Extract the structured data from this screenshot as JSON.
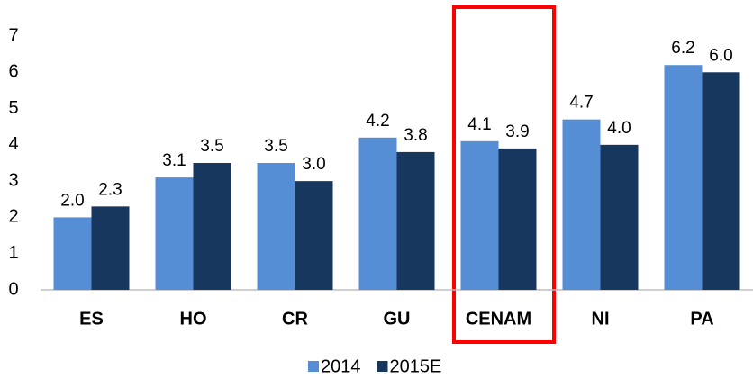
{
  "chart_data": {
    "type": "bar",
    "categories": [
      "ES",
      "HO",
      "CR",
      "GU",
      "CENAM",
      "NI",
      "PA"
    ],
    "series": [
      {
        "name": "2014",
        "color": "#558ed5",
        "values": [
          2.0,
          3.1,
          3.5,
          4.2,
          4.1,
          4.7,
          6.2
        ],
        "value_labels": [
          "2.0",
          "3.1",
          "3.5",
          "4.2",
          "4.1",
          "4.7",
          "6.2"
        ]
      },
      {
        "name": "2015E",
        "color": "#17375e",
        "values": [
          2.3,
          3.5,
          3.0,
          3.8,
          3.9,
          4.0,
          6.0
        ],
        "value_labels": [
          "2.3",
          "3.5",
          "3.0",
          "3.8",
          "3.9",
          "4.0",
          "6.0"
        ]
      }
    ],
    "ylim": [
      0,
      7
    ],
    "yticks": [
      0,
      1,
      2,
      3,
      4,
      5,
      6,
      7
    ],
    "grid": false,
    "legend": "bottom"
  }
}
